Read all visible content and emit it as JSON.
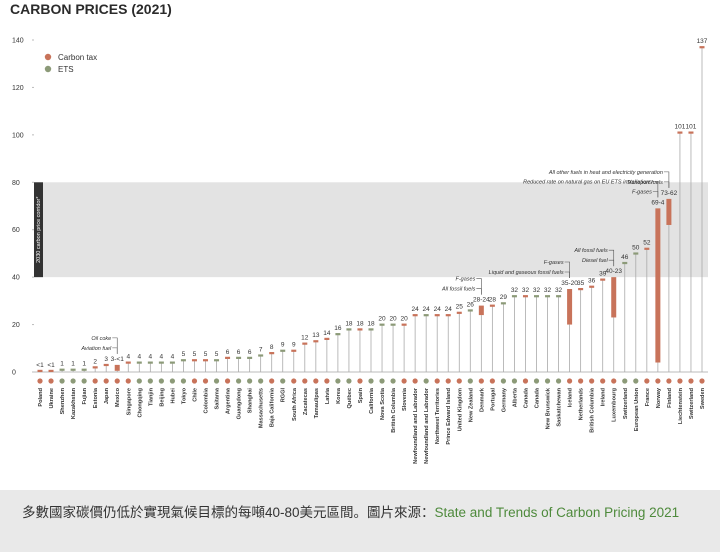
{
  "chart_data": {
    "type": "bar",
    "title": "CARBON PRICES (2021)",
    "categories": [
      "Poland",
      "Ukraine",
      "Shenzhen",
      "Kazakhstan",
      "Fujian",
      "Estonia",
      "Japan",
      "Mexico",
      "Singapore",
      "Chongqing",
      "Tianjin",
      "Beijing",
      "Hubei",
      "Tokyo",
      "Chile",
      "Colombia",
      "Saitama",
      "Argentina",
      "Guangdong",
      "Shanghai",
      "Massachusetts",
      "Baja California",
      "RGGI",
      "South Africa",
      "Zacatecas",
      "Tamaulipas",
      "Latvia",
      "Korea",
      "Québec",
      "Spain",
      "California",
      "Nova Scotia",
      "British Columbia",
      "Slovenia",
      "Newfoundland and Labrador",
      "Newfoundland and Labrador",
      "Northwest Territories",
      "Prince Edward Island",
      "United Kingdom",
      "New Zealand",
      "Denmark",
      "Portugal",
      "Germany",
      "Alberta",
      "Canada",
      "Canada",
      "New Brunswick",
      "Saskatchewan",
      "Iceland",
      "Netherlands",
      "British Columbia",
      "Ireland",
      "Luxembourg",
      "Switzerland",
      "European Union",
      "France",
      "Norway",
      "Finland",
      "Liechtenstein",
      "Switzerland",
      "Sweden"
    ],
    "values": [
      0.5,
      0.5,
      1,
      1,
      1,
      2,
      3,
      3,
      4,
      4,
      4,
      4,
      4,
      5,
      5,
      5,
      5,
      6,
      6,
      6,
      7,
      8,
      9,
      9,
      12,
      13,
      14,
      16,
      18,
      18,
      18,
      20,
      20,
      20,
      24,
      24,
      24,
      24,
      25,
      26,
      28,
      28,
      29,
      32,
      32,
      32,
      32,
      32,
      35,
      35,
      36,
      39,
      40,
      46,
      50,
      52,
      69,
      73,
      101,
      101,
      137
    ],
    "value_labels": [
      "<1",
      "<1",
      "1",
      "1",
      "1",
      "2",
      "3",
      "3-<1",
      "4",
      "4",
      "4",
      "4",
      "4",
      "5",
      "5",
      "5",
      "5",
      "6",
      "6",
      "6",
      "7",
      "8",
      "9",
      "9",
      "12",
      "13",
      "14",
      "16",
      "18",
      "18",
      "18",
      "20",
      "20",
      "20",
      "24",
      "24",
      "24",
      "24",
      "25",
      "26",
      "28-24",
      "28",
      "29",
      "32",
      "32",
      "32",
      "32",
      "32",
      "35-20",
      "35",
      "36",
      "39",
      "40-23",
      "46",
      "50",
      "52",
      "69-4",
      "73-62",
      "101",
      "101",
      "137"
    ],
    "lows": [
      null,
      null,
      null,
      null,
      null,
      null,
      null,
      0.5,
      null,
      null,
      null,
      null,
      null,
      null,
      null,
      null,
      null,
      null,
      null,
      null,
      null,
      null,
      null,
      null,
      null,
      null,
      null,
      null,
      null,
      null,
      null,
      null,
      null,
      null,
      null,
      null,
      null,
      null,
      null,
      null,
      24,
      null,
      null,
      null,
      null,
      null,
      null,
      null,
      20,
      null,
      null,
      null,
      23,
      null,
      null,
      null,
      4,
      62,
      null,
      null,
      null
    ],
    "instrument": [
      "Carbon tax",
      "Carbon tax",
      "ETS",
      "ETS",
      "ETS",
      "Carbon tax",
      "Carbon tax",
      "Carbon tax",
      "Carbon tax",
      "ETS",
      "ETS",
      "ETS",
      "ETS",
      "ETS",
      "Carbon tax",
      "Carbon tax",
      "ETS",
      "Carbon tax",
      "ETS",
      "ETS",
      "ETS",
      "Carbon tax",
      "ETS",
      "Carbon tax",
      "Carbon tax",
      "Carbon tax",
      "Carbon tax",
      "ETS",
      "ETS",
      "Carbon tax",
      "ETS",
      "ETS",
      "ETS",
      "Carbon tax",
      "Carbon tax",
      "ETS",
      "Carbon tax",
      "Carbon tax",
      "Carbon tax",
      "ETS",
      "Carbon tax",
      "Carbon tax",
      "ETS",
      "ETS",
      "Carbon tax",
      "ETS",
      "ETS",
      "ETS",
      "Carbon tax",
      "Carbon tax",
      "Carbon tax",
      "Carbon tax",
      "Carbon tax",
      "ETS",
      "ETS",
      "Carbon tax",
      "Carbon tax",
      "Carbon tax",
      "Carbon tax",
      "Carbon tax",
      "Carbon tax"
    ],
    "types": [
      {
        "name": "Carbon tax",
        "color": "#c8735a"
      },
      {
        "name": "ETS",
        "color": "#8c9a78"
      }
    ],
    "band": {
      "range": [
        40,
        80
      ],
      "label": "2030 carbon price corridor*",
      "color": "#e3e3e3"
    },
    "annotations": [
      {
        "text": "Oil coke",
        "at": "Mexico"
      },
      {
        "text": "Aviation fuel",
        "at": "Mexico"
      },
      {
        "text": "F-gases",
        "at": "Denmark"
      },
      {
        "text": "All fossil fuels",
        "at": "Denmark"
      },
      {
        "text": "F-gases",
        "at": "Iceland"
      },
      {
        "text": "Liquid and gaseous fossil fuels",
        "at": "Iceland"
      },
      {
        "text": "All fossil fuels",
        "at": "Luxembourg"
      },
      {
        "text": "Diesel fuel",
        "at": "Luxembourg"
      },
      {
        "text": "Reduced rate on natural gas on EU ETS installations",
        "at": "Norway"
      },
      {
        "text": "F-gases",
        "at": "Norway"
      },
      {
        "text": "All other fuels in heat and electricity generation",
        "at": "Finland"
      },
      {
        "text": "Transport fuels",
        "at": "Finland"
      }
    ],
    "ylim": [
      0,
      140
    ],
    "yticks": [
      0,
      20,
      40,
      60,
      80,
      100,
      120,
      140
    ]
  },
  "caption": {
    "text": "多數國家碳價仍低於實現氣候目標的每噸40-80美元區間。圖片來源：",
    "link": "State and Trends of Carbon Pricing 2021"
  }
}
